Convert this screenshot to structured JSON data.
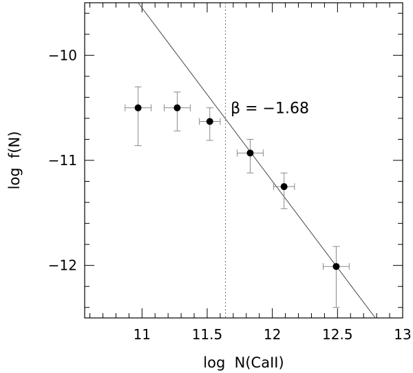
{
  "chart_data": {
    "type": "scatter",
    "xlabel": "log  N(CaII)",
    "ylabel": "log  f(N)",
    "xlim": [
      10.56,
      13.0
    ],
    "ylim": [
      -12.5,
      -9.5
    ],
    "x_ticks": [
      11,
      11.5,
      12,
      12.5,
      13
    ],
    "x_tick_labels": [
      "11",
      "11.5",
      "12",
      "12.5",
      "13"
    ],
    "y_ticks": [
      -10,
      -11,
      -12
    ],
    "y_tick_labels": [
      "−10",
      "−11",
      "−12"
    ],
    "points": [
      {
        "x": 10.97,
        "y": -10.5,
        "xerr": [
          0.1,
          0.1
        ],
        "yerr": [
          0.36,
          0.2
        ]
      },
      {
        "x": 11.27,
        "y": -10.5,
        "xerr": [
          0.1,
          0.1
        ],
        "yerr": [
          0.22,
          0.15
        ]
      },
      {
        "x": 11.52,
        "y": -10.63,
        "xerr": [
          0.08,
          0.08
        ],
        "yerr": [
          0.18,
          0.13
        ]
      },
      {
        "x": 11.83,
        "y": -10.93,
        "xerr": [
          0.1,
          0.1
        ],
        "yerr": [
          0.19,
          0.13
        ]
      },
      {
        "x": 12.09,
        "y": -11.25,
        "xerr": [
          0.08,
          0.08
        ],
        "yerr": [
          0.21,
          0.13
        ]
      },
      {
        "x": 12.49,
        "y": -12.01,
        "xerr": [
          0.1,
          0.1
        ],
        "yerr": [
          0.39,
          0.19
        ]
      }
    ],
    "fit_line": {
      "slope": -1.68,
      "x_start": 10.97,
      "y_start": -9.5,
      "x_end": 12.79,
      "y_end": -12.5
    },
    "vertical_dotted_line": {
      "x": 11.64
    },
    "annotation": {
      "text": "β = −1.68",
      "x": 11.68,
      "y": -10.5
    },
    "grid": false,
    "legend": "none"
  }
}
